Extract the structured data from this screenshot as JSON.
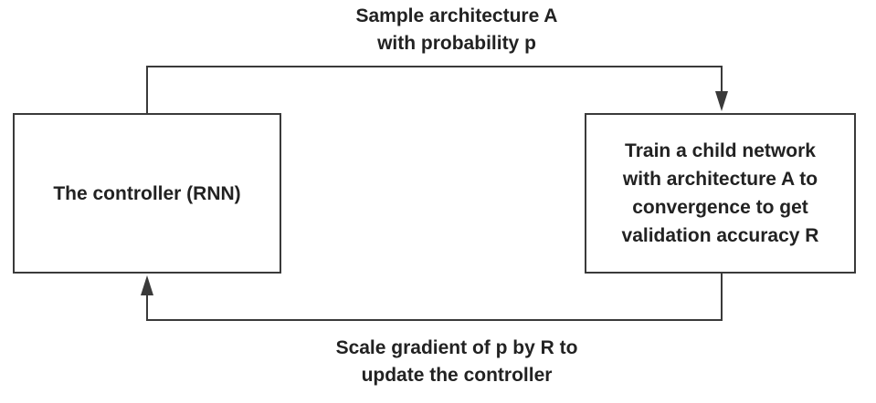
{
  "top_edge": {
    "lines": [
      "Sample architecture A",
      "with probability p"
    ]
  },
  "bottom_edge": {
    "lines": [
      "Scale gradient of p by R to",
      "update the controller"
    ]
  },
  "controller": {
    "label": "The controller (RNN)"
  },
  "child": {
    "lines": [
      "Train a child network",
      "with architecture A to",
      "convergence to get",
      "validation accuracy R"
    ]
  },
  "colors": {
    "stroke": "#3a3a3a",
    "text": "#222222",
    "background": "#ffffff"
  }
}
